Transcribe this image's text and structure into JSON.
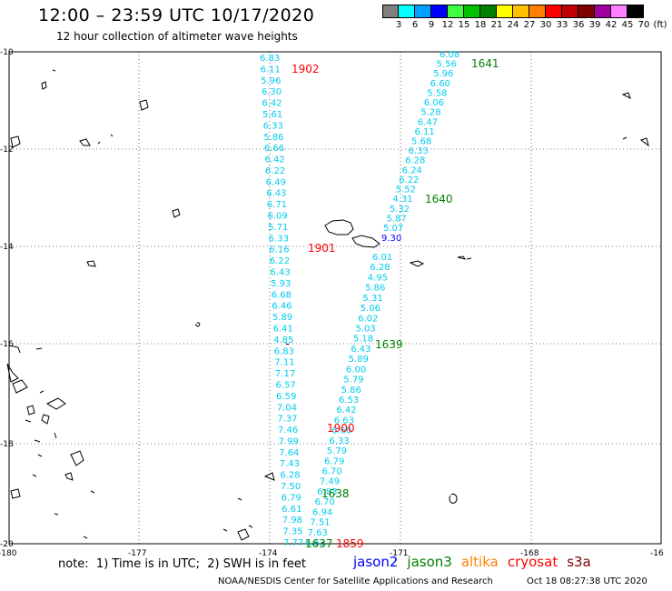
{
  "header": {
    "title": "12:00 – 23:59 UTC 10/17/2020",
    "subtitle": "12 hour collection of altimeter wave heights"
  },
  "colorbar": {
    "colors": [
      "#808080",
      "#00ffff",
      "#00a0ff",
      "#0000ff",
      "#40ff40",
      "#00c000",
      "#008000",
      "#ffff00",
      "#ffc000",
      "#ff8000",
      "#ff0000",
      "#c00000",
      "#800000",
      "#a000a0",
      "#ff80ff",
      "#000000"
    ],
    "labels": [
      "3",
      "6",
      "9",
      "12",
      "15",
      "18",
      "21",
      "24",
      "27",
      "30",
      "33",
      "36",
      "39",
      "42",
      "45",
      "70",
      "(ft)"
    ]
  },
  "axes": {
    "lat_labels": [
      "-10",
      "-12",
      "-14",
      "-16",
      "-18",
      "-20"
    ],
    "lon_labels": [
      "-180",
      "-177",
      "-174",
      "-171",
      "-168",
      "-16"
    ]
  },
  "tracks": [
    {
      "satellite": "s3a",
      "time_label": "1902",
      "label_color": "#ff0000",
      "value_color": "#00ccee",
      "values": [
        "6.83",
        "6.11",
        "5.96",
        "6.30",
        "6.42",
        "5.61",
        "6.33",
        "5.86",
        "6.66",
        "6.42",
        "6.22",
        "6.49",
        "6.43",
        "6.71",
        "6.09",
        "5.71",
        "6.33",
        "6.16",
        "6.22",
        "6.43",
        "5.93",
        "6.68",
        "6.46",
        "5.89",
        "6.41",
        "4.85",
        "6.83",
        "7.11",
        "7.17",
        "6.57",
        "6.59",
        "7.04",
        "7.37",
        "7.46",
        "7.99",
        "7.64",
        "7.43",
        "6.28",
        "7.50",
        "6.79",
        "6.61",
        "7.98",
        "7.35",
        "7.77"
      ]
    },
    {
      "satellite": "jason3",
      "time_label": "1641",
      "label_color": "#008000",
      "value_color": "#00ccee",
      "values": [
        "6.08",
        "5.56",
        "5.96",
        "6.60",
        "5.58",
        "6.06",
        "5.28",
        "6.47",
        "6.11",
        "5.68",
        "6.33",
        "6.28",
        "6.24",
        "6.22",
        "5.52",
        "4.31",
        "5.32",
        "5.87",
        "5.07"
      ]
    },
    {
      "satellite": "jason3",
      "time_label": "1640",
      "label_color": "#008000",
      "value_color": "#00ccee",
      "values": [
        "6.01",
        "6.28",
        "4.95",
        "5.86",
        "5.31",
        "5.06",
        "6.02",
        "5.03",
        "5.18",
        "6.43",
        "5.89",
        "6.00",
        "5.79",
        "5.86",
        "6.53",
        "6.42",
        "6.63",
        "6.60",
        "6.33",
        "5.79",
        "6.79",
        "6.70",
        "7.49",
        "6.83",
        "6.70",
        "6.94",
        "7.51",
        "7.63",
        "6.63"
      ]
    },
    {
      "satellite": "jason2",
      "time_label": "9.30",
      "label_color": "#0000ff",
      "value_color": "#0000ff",
      "values": []
    }
  ],
  "time_labels": [
    {
      "text": "1902",
      "color": "#ff0000"
    },
    {
      "text": "1641",
      "color": "#008000"
    },
    {
      "text": "1640",
      "color": "#008000"
    },
    {
      "text": "1901",
      "color": "#ff0000"
    },
    {
      "text": "1639",
      "color": "#008000"
    },
    {
      "text": "1900",
      "color": "#ff0000"
    },
    {
      "text": "1638",
      "color": "#008000"
    },
    {
      "text": "1637",
      "color": "#008000"
    },
    {
      "text": "1859",
      "color": "#ff0000"
    },
    {
      "text": "9.30",
      "color": "#0000ff"
    }
  ],
  "note": "note:  1) Time is in UTC;  2) SWH is in feet",
  "satellites": [
    {
      "name": "jason2",
      "color": "#0000ff"
    },
    {
      "name": "jason3",
      "color": "#008000"
    },
    {
      "name": "altika",
      "color": "#ff8000"
    },
    {
      "name": "cryosat",
      "color": "#ff0000"
    },
    {
      "name": "s3a",
      "color": "#800000"
    }
  ],
  "footer": {
    "credit": "NOAA/NESDIS Center for Satellite Applications and Research",
    "timestamp": "Oct 18 08:27:38 UTC 2020"
  }
}
